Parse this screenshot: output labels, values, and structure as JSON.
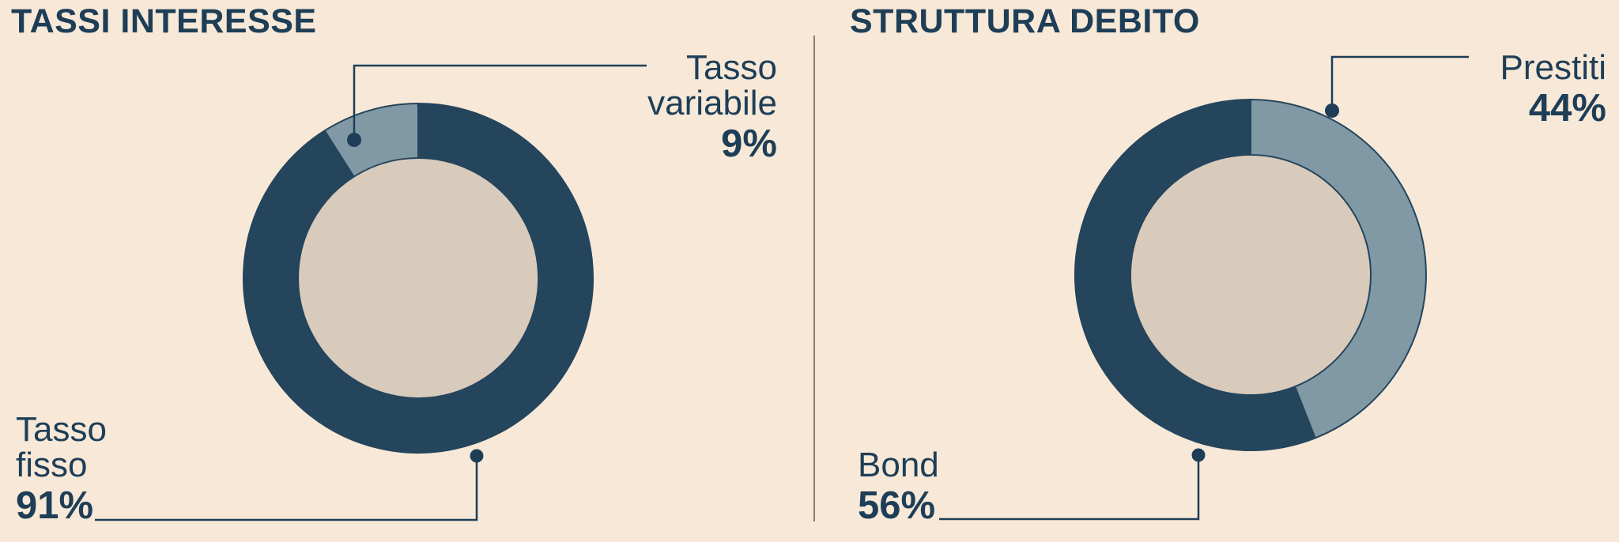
{
  "background_color": "#f7e8d7",
  "palette": {
    "navy": "#24455c",
    "steel": "#8199a5",
    "hole": "#d9cbbc",
    "text": "#1e3e57",
    "leader": "#1e3e57",
    "divider": "#8a7f70"
  },
  "charts": [
    {
      "title": "TASSI INTERESSE",
      "callouts": [
        {
          "label": "Tasso variabile",
          "pct": "9%"
        },
        {
          "label": "Tasso fisso",
          "pct": "91%"
        }
      ]
    },
    {
      "title": "STRUTTURA DEBITO",
      "callouts": [
        {
          "label": "Prestiti",
          "pct": "44%"
        },
        {
          "label": "Bond",
          "pct": "56%"
        }
      ]
    }
  ],
  "chart_data": [
    {
      "type": "pie",
      "subtype": "donut",
      "title": "TASSI INTERESSE",
      "labels": [
        "Tasso variabile",
        "Tasso fisso"
      ],
      "values": [
        9,
        91
      ],
      "unit": "%",
      "colors": [
        "#8199a5",
        "#24455c"
      ],
      "start_angle": "top",
      "legend_position": "callout-labels"
    },
    {
      "type": "pie",
      "subtype": "donut",
      "title": "STRUTTURA DEBITO",
      "labels": [
        "Prestiti",
        "Bond"
      ],
      "values": [
        44,
        56
      ],
      "unit": "%",
      "colors": [
        "#8199a5",
        "#24455c"
      ],
      "start_angle": "top",
      "legend_position": "callout-labels"
    }
  ]
}
